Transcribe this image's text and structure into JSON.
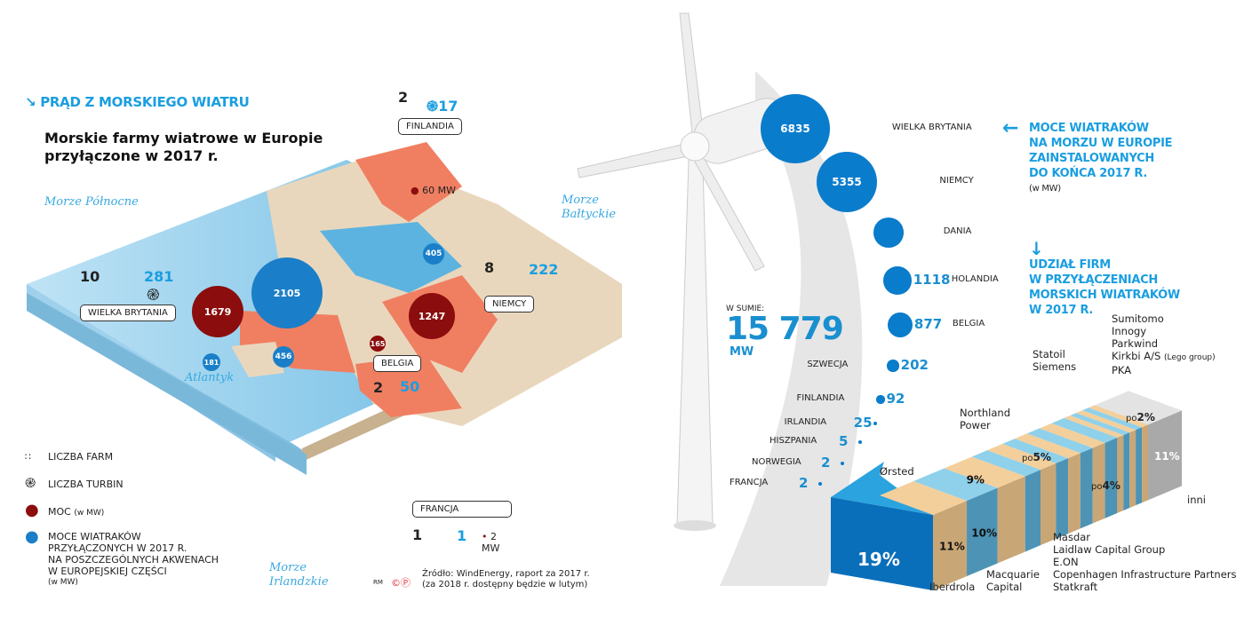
{
  "header": {
    "title": "PRĄD Z MORSKIEGO WIATRU",
    "subtitle_line1": "Morskie farmy wiatrowe w Europie",
    "subtitle_line2": "przyłączone w 2017 r."
  },
  "seas": {
    "north": "Morze Północne",
    "baltic_1": "Morze",
    "baltic_2": "Bałtyckie",
    "atlantic": "Atlantyk",
    "irish_1": "Morze",
    "irish_2": "Irlandzkie"
  },
  "countries": [
    {
      "name": "FINLANDIA",
      "farms": "2",
      "turbines": "17",
      "power": "60 MW"
    },
    {
      "name": "WIELKA BRYTANIA",
      "farms": "10",
      "turbines": "281",
      "power": "1679"
    },
    {
      "name": "NIEMCY",
      "farms": "8",
      "turbines": "222",
      "power": "1247"
    },
    {
      "name": "BELGIA",
      "farms": "2",
      "turbines": "50",
      "power": "165"
    },
    {
      "name": "FRANCJA",
      "farms": "1",
      "turbines": "1",
      "power": "2 MW"
    }
  ],
  "sea_capacity": {
    "north": "2105",
    "baltic": "405",
    "irish": "456",
    "atlantic": "181"
  },
  "legend": {
    "farms": "LICZBA FARM",
    "turbines": "LICZBA TURBIN",
    "power": "MOC",
    "power_unit": "(w MW)",
    "capacity_1": "MOCE WIATRAKÓW",
    "capacity_2": "PRZYŁĄCZONYCH W 2017 R.",
    "capacity_3": "NA POSZCZEGÓLNYCH AKWENACH",
    "capacity_4": "W EUROPEJSKIEJ CZĘŚCI",
    "capacity_unit": "(w MW)"
  },
  "source": {
    "line1": "Źródło: WindEnergy, raport za 2017 r.",
    "line2": "(za 2018 r. dostępny będzie w lutym)",
    "credit": "RM"
  },
  "colors": {
    "accent": "#1a9ee0",
    "power": "#8b0d0d",
    "capacity": "#1a7fc8",
    "land": "#e9d7bd",
    "highlight": "#f07f62",
    "sea": "#5db3e0"
  },
  "installed": {
    "title_1": "MOCE WIATRAKÓW",
    "title_2": "NA MORZU W EUROPIE",
    "title_3": "ZAINSTALOWANYCH",
    "title_4": "DO KOŃCA 2017 R.",
    "unit": "(w MW)",
    "total_label": "W SUMIE:",
    "total": "15 779",
    "total_unit": "MW"
  },
  "shares": {
    "title_1": "UDZIAŁ FIRM",
    "title_2": "W PRZYŁĄCZENIACH",
    "title_3": "MORSKICH WIATRAKÓW",
    "title_4": "W 2017 R."
  },
  "chart_data": [
    {
      "type": "bubble",
      "title": "MOCE WIATRAKÓW NA MORZU W EUROPIE ZAINSTALOWANYCH DO KOŃCA 2017 R.",
      "unit": "MW",
      "categories": [
        "WIELKA BRYTANIA",
        "NIEMCY",
        "DANIA",
        "HOLANDIA",
        "BELGIA",
        "SZWECJA",
        "FINLANDIA",
        "IRLANDIA",
        "HISZPANIA",
        "NORWEGIA",
        "FRANCJA"
      ],
      "values": [
        6835,
        5355,
        1266,
        1118,
        877,
        202,
        92,
        25,
        5,
        2,
        2
      ]
    },
    {
      "type": "bar",
      "title": "UDZIAŁ FIRM W PRZYŁĄCZENIACH MORSKICH WIATRAKÓW W 2017 R.",
      "stacked": true,
      "segments": [
        {
          "label": "Ørsted",
          "value": 19,
          "display": "19%",
          "color": "#0a6fba"
        },
        {
          "label": "Iberdrola",
          "value": 11,
          "display": "11%",
          "color": "#c8a676"
        },
        {
          "label": "Macquarie Capital",
          "value": 10,
          "display": "10%",
          "color": "#4d93b5"
        },
        {
          "label": "Northland Power",
          "value": 9,
          "display": "9%",
          "color": "#c8a676"
        },
        {
          "label": "Statoil",
          "value": 5,
          "color": "#4d93b5"
        },
        {
          "label": "Siemens",
          "value": 5,
          "color": "#c8a676"
        },
        {
          "label": "Masdar",
          "value": 4,
          "color": "#4d93b5"
        },
        {
          "label": "Laidlaw Capital Group",
          "value": 4,
          "color": "#c8a676"
        },
        {
          "label": "E.ON",
          "value": 4,
          "color": "#4d93b5"
        },
        {
          "label": "Copenhagen Infrastructure Partners",
          "value": 4,
          "color": "#c8a676"
        },
        {
          "label": "Statkraft",
          "value": 4,
          "color": "#4d93b5"
        },
        {
          "label": "Sumitomo",
          "value": 2,
          "color": "#c8a676"
        },
        {
          "label": "Innogy",
          "value": 2,
          "color": "#4d93b5"
        },
        {
          "label": "Parkwind",
          "value": 2,
          "color": "#c8a676"
        },
        {
          "label": "Kirkbi A/S (Lego group)",
          "value": 2,
          "color": "#4d93b5"
        },
        {
          "label": "PKA",
          "value": 2,
          "color": "#c8a676"
        },
        {
          "label": "inni",
          "value": 11,
          "display": "11%",
          "color": "#a9a9a9"
        }
      ],
      "group_labels": {
        "po5": "po",
        "po5v": "5%",
        "po4": "po",
        "po4v": "4%",
        "po2": "po",
        "po2v": "2%"
      }
    }
  ],
  "labels": {
    "orsted": "Ørsted",
    "iberdrola": "Iberdrola",
    "macquarie_1": "Macquarie",
    "macquarie_2": "Capital",
    "northland_1": "Northland",
    "northland_2": "Power",
    "statoil": "Statoil",
    "siemens": "Siemens",
    "masdar": "Masdar",
    "laidlaw": "Laidlaw Capital Group",
    "eon": "E.ON",
    "cip": "Copenhagen Infrastructure Partners",
    "statkraft": "Statkraft",
    "sumitomo": "Sumitomo",
    "innogy": "Innogy",
    "parkwind": "Parkwind",
    "kirkbi": "Kirkbi A/S",
    "lego": "(Lego group)",
    "pka": "PKA",
    "inni": "inni"
  }
}
